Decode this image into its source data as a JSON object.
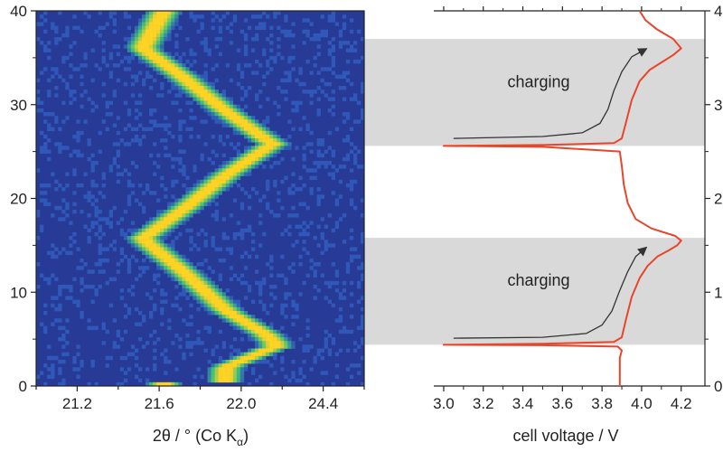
{
  "chart_data": [
    {
      "type": "heatmap",
      "xlabel_main": "2θ / ° (Co K",
      "xlabel_sub": "α",
      "xlabel_tail": ")",
      "ylabel": "",
      "x_ticks": [
        "21.2",
        "21.6",
        "22.0",
        "24.4"
      ],
      "y_ticks": [
        "0",
        "10",
        "20",
        "30",
        "40"
      ],
      "ylim": [
        0,
        40
      ],
      "colors": {
        "background": "#263a96",
        "low": "#2f58b8",
        "mid": "#3fc27a",
        "high": "#ffd324"
      },
      "bright_ridge": [
        {
          "y": 0.5,
          "x": 0.575
        },
        {
          "y": 2,
          "x": 0.578
        },
        {
          "y": 4.3,
          "x": 0.735
        },
        {
          "y": 5.5,
          "x": 0.7
        },
        {
          "y": 8,
          "x": 0.58
        },
        {
          "y": 12,
          "x": 0.455
        },
        {
          "y": 15.7,
          "x": 0.325
        },
        {
          "y": 19,
          "x": 0.455
        },
        {
          "y": 22.5,
          "x": 0.58
        },
        {
          "y": 25.8,
          "x": 0.72
        },
        {
          "y": 29.5,
          "x": 0.57
        },
        {
          "y": 33,
          "x": 0.445
        },
        {
          "y": 36,
          "x": 0.325
        },
        {
          "y": 40,
          "x": 0.39
        }
      ]
    },
    {
      "type": "line",
      "xlabel": "cell voltage / V",
      "ylabel": "",
      "x_ticks": [
        "3.0",
        "3.2",
        "3.4",
        "3.6",
        "3.8",
        "4.0",
        "4.2"
      ],
      "y_ticks": [
        "0",
        "10",
        "20",
        "30",
        "40"
      ],
      "xlim": [
        2.95,
        4.32
      ],
      "ylim": [
        0,
        40
      ],
      "series": [
        {
          "color": "#e8452a",
          "points": [
            [
              3.89,
              0
            ],
            [
              3.89,
              3.0
            ],
            [
              3.9,
              3.8
            ],
            [
              3.88,
              4.2
            ],
            [
              3.5,
              4.35
            ],
            [
              3.0,
              4.4
            ],
            [
              3.5,
              4.5
            ],
            [
              3.86,
              4.7
            ],
            [
              3.9,
              5.2
            ],
            [
              3.92,
              7
            ],
            [
              3.95,
              9.5
            ],
            [
              3.99,
              11.5
            ],
            [
              4.03,
              12.8
            ],
            [
              4.08,
              13.8
            ],
            [
              4.14,
              14.5
            ],
            [
              4.18,
              15.0
            ],
            [
              4.2,
              15.5
            ],
            [
              4.17,
              16.0
            ],
            [
              4.05,
              16.8
            ],
            [
              3.97,
              17.8
            ],
            [
              3.93,
              19.5
            ],
            [
              3.91,
              21.5
            ],
            [
              3.9,
              23.5
            ],
            [
              3.89,
              25.0
            ],
            [
              3.5,
              25.5
            ],
            [
              3.0,
              25.6
            ],
            [
              3.5,
              25.7
            ],
            [
              3.86,
              25.9
            ],
            [
              3.9,
              26.4
            ],
            [
              3.92,
              28
            ],
            [
              3.95,
              30.5
            ],
            [
              3.99,
              32.5
            ],
            [
              4.04,
              33.7
            ],
            [
              4.1,
              34.5
            ],
            [
              4.16,
              35.3
            ],
            [
              4.2,
              36.0
            ],
            [
              4.16,
              37.0
            ],
            [
              4.08,
              38.0
            ],
            [
              4.02,
              39.0
            ],
            [
              3.99,
              40
            ]
          ]
        },
        {
          "color": "#333333",
          "points": [
            [
              3.05,
              5.1
            ],
            [
              3.5,
              5.2
            ],
            [
              3.72,
              5.6
            ],
            [
              3.8,
              6.5
            ],
            [
              3.85,
              8
            ],
            [
              3.89,
              10.2
            ],
            [
              3.93,
              12.2
            ],
            [
              3.97,
              13.8
            ],
            [
              4.02,
              14.7
            ]
          ]
        },
        {
          "color": "#333333",
          "points": [
            [
              3.05,
              26.4
            ],
            [
              3.5,
              26.6
            ],
            [
              3.7,
              27.0
            ],
            [
              3.79,
              28
            ],
            [
              3.83,
              29.5
            ],
            [
              3.86,
              31.5
            ],
            [
              3.9,
              33.5
            ],
            [
              3.95,
              35.1
            ],
            [
              4.02,
              35.9
            ]
          ]
        }
      ],
      "shaded_bands": [
        {
          "y_from": 4.4,
          "y_to": 15.8,
          "label": "charging",
          "color": "#d9d9d9"
        },
        {
          "y_from": 25.6,
          "y_to": 37.0,
          "label": "charging",
          "color": "#d9d9d9"
        }
      ]
    }
  ]
}
